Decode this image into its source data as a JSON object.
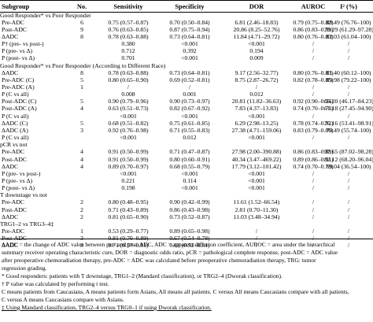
{
  "header": {
    "subgroup": "Subgroup",
    "no": "No.",
    "sensitivity": "Sensitivity",
    "specificity": "Specificity",
    "dor": "DOR",
    "auroc": "AUROC",
    "i2": "I² (%)"
  },
  "rows": [
    {
      "type": "section",
      "c0": "Good Responder* vs Poor Responder"
    },
    {
      "type": "data",
      "c0": "Pre-ADC",
      "c1": "6",
      "c2": "0.75 (0.57–0.87)",
      "c3": "0.70 (0.50–0.84)",
      "c4": "6.81 (2.46–18.83)",
      "c5": "0.79 (0.75–0.82)",
      "c6": "88.49 (76.76–100)"
    },
    {
      "type": "data",
      "c0": "Post-ADC",
      "c1": "9",
      "c2": "0.76 (0.63–0.85)",
      "c3": "0.87 (0.75–0.94)",
      "c4": "20.86 (8.25–52.76)",
      "c5": "0.86 (0.83–0.89)",
      "c6": "79.29 (61.29–97.28)"
    },
    {
      "type": "data",
      "c0": "ΔADC",
      "c1": "8",
      "c2": "0.78 (0.63–0.88)",
      "c3": "0.73 (0.64–0.81)",
      "c4": "11.84 (4.71–29.72)",
      "c5": "0.80 (0.76–0.83)",
      "c6": "82.03 (61.04–100)"
    },
    {
      "type": "data",
      "c0": "P† (pre- vs post-)",
      "c1": "",
      "c2": "0.380",
      "c3": "<0.001",
      "c4": "<0.001",
      "c5": "/",
      "c6": "/"
    },
    {
      "type": "data",
      "c0": "P (pre- vs Δ)",
      "c1": "",
      "c2": "0.712",
      "c3": "0.392",
      "c4": "0.194",
      "c5": "/",
      "c6": "/"
    },
    {
      "type": "data",
      "c0": "P (post- vs Δ)",
      "c1": "",
      "c2": "0.701",
      "c3": "<0.001",
      "c4": "0.009",
      "c5": "/",
      "c6": "/"
    },
    {
      "type": "section",
      "c0": "Good Responder* vs Poor Responder (According to Different Race)"
    },
    {
      "type": "data",
      "c0": "ΔADC",
      "c1": "8",
      "c2": "0.78 (0.63–0.88)",
      "c3": "0.73 (0.64–0.81)",
      "c4": "9.17 (2.56–32.77)",
      "c5": "0.80 (0.76–0.83)",
      "c6": "81.40 (60.12–100)"
    },
    {
      "type": "data",
      "c0": "Pre-ADC (C)",
      "c1": "5",
      "c2": "0.80 (0.65–0.90)",
      "c3": "0.69 (0.52–0.81)",
      "c4": "8.75 (2.87–26.72)",
      "c5": "0.82 (0.78–0.85)",
      "c6": "89.98 (79.22–100)"
    },
    {
      "type": "data",
      "c0": "Pre-ADC (A)",
      "c1": "1",
      "c2": "/",
      "c3": "/",
      "c4": "/",
      "c5": "/",
      "c6": "/"
    },
    {
      "type": "data",
      "c0": "P (C vs all)",
      "c1": "",
      "c2": "0.008",
      "c3": "0.001",
      "c4": "0.012",
      "c5": "/",
      "c6": "/"
    },
    {
      "type": "data",
      "c0": "Post-ADC (C)",
      "c1": "5",
      "c2": "0.90 (0.79–0.96)",
      "c3": "0.90 (0.73–0.97)",
      "c4": "20.81 (11.82–36.63)",
      "c5": "0.92 (0.90–0.94)",
      "c6": "65.20 (46.17–84.23)"
    },
    {
      "type": "data",
      "c0": "Post-ADC (A)",
      "c1": "4",
      "c2": "0.63 (0.51–0.73)",
      "c3": "0.82 (0.67–0.92)",
      "c4": "7.83 (4.37–13.83)",
      "c5": "0.74 (0.70–0.78)",
      "c6": "61.18 (27.45–94.90)"
    },
    {
      "type": "data",
      "c0": "P (C vs all)",
      "c1": "",
      "c2": "<0.001",
      "c3": "<0.001",
      "c4": "<0.001",
      "c5": "/",
      "c6": "/"
    },
    {
      "type": "data",
      "c0": "ΔADC (C)",
      "c1": "5",
      "c2": "0.68 (0.51–0.82)",
      "c3": "0.75 (0.61–0.85)",
      "c4": "6.29 (2.98–13.25)",
      "c5": "0.78 (0.74–0.82)",
      "c6": "76.16 (53.41–98.91)"
    },
    {
      "type": "data",
      "c0": "ΔADC (A)",
      "c1": "3",
      "c2": "0.92 (0.76–0.98)",
      "c3": "0.71 (0.55–0.83)",
      "c4": "27.38 (4.71–159.06)",
      "c5": "0.83 (0.79–0.86)",
      "c6": "79.49 (55.74–100)"
    },
    {
      "type": "data",
      "c0": "P (C vs all)",
      "c1": "",
      "c2": "<0.001",
      "c3": "0.012",
      "c4": "<0.001",
      "c5": "/",
      "c6": "/"
    },
    {
      "type": "section",
      "c0": "pCR vs not"
    },
    {
      "type": "data",
      "c0": "Pre-ADC",
      "c1": "4",
      "c2": "0.91 (0.50–0.99)",
      "c3": "0.71 (0.47–0.87)",
      "c4": "27.98 (2.00–390.88)",
      "c5": "0.86 (0.83–0.89)",
      "c6": "92.65 (87.02–98.28)"
    },
    {
      "type": "data",
      "c0": "Post-ADC",
      "c1": "4",
      "c2": "0.91 (0.50–0.99)",
      "c3": "0.80 (0.60–0.91)",
      "c4": "40.34 (3.47–469.22)",
      "c5": "0.89 (0.86–0.91)",
      "c6": "82.12 (68.20–96.04)"
    },
    {
      "type": "data",
      "c0": "ΔADC",
      "c1": "4",
      "c2": "0.89 (0.70–0.97)",
      "c3": "0.68 (0.55–0.79)",
      "c4": "17.79 (3.12–101.42)",
      "c5": "0.74 (0.70–0.78)",
      "c6": "69.04 (36.54–100)"
    },
    {
      "type": "data",
      "c0": "P (pre- vs post-)",
      "c1": "",
      "c2": "<0.001",
      "c3": "<0.001",
      "c4": "<0.001",
      "c5": "/",
      "c6": "/"
    },
    {
      "type": "data",
      "c0": "P (pre- vs Δ)",
      "c1": "",
      "c2": "0.221",
      "c3": "0.114",
      "c4": "<0.001",
      "c5": "/",
      "c6": "/"
    },
    {
      "type": "data",
      "c0": "P (post- vs Δ)",
      "c1": "",
      "c2": "0.198",
      "c3": "<0.001",
      "c4": "<0.001",
      "c5": "/",
      "c6": "/"
    },
    {
      "type": "section",
      "c0": "T downstage vs not"
    },
    {
      "type": "data",
      "c0": "Pre-ADC",
      "c1": "2",
      "c2": "0.80 (0.48–0.95)",
      "c3": "0.90 (0.42–0.99)",
      "c4": "11.61 (1.52–66.54)",
      "c5": "/",
      "c6": "/"
    },
    {
      "type": "data",
      "c0": "Post-ADC",
      "c1": "2",
      "c2": "0.71 (0.43–0.89)",
      "c3": "0.86 (0.43–0.98)",
      "c4": "2.81 (0.70–11.30)",
      "c5": "/",
      "c6": "/"
    },
    {
      "type": "data",
      "c0": "ΔADC",
      "c1": "2",
      "c2": "0.81 (0.65–0.90)",
      "c3": "0.73 (0.52–0.87)",
      "c4": "11.03 (3.48–34.94)",
      "c5": "/",
      "c6": "/"
    },
    {
      "type": "section",
      "c0": "TRG1–2 vs TRG3–4‡"
    },
    {
      "type": "data",
      "c0": "Pre-ADC",
      "c1": "1",
      "c2": "0.53 (0.29–0.77)",
      "c3": "0.89 (0.65–0.98)",
      "c4": "/",
      "c5": "/",
      "c6": "/"
    },
    {
      "type": "data",
      "c0": "Post-ADC",
      "c1": "3",
      "c2": "0.81 (0.70–0.89)",
      "c3": "0.67 (0.54–0.78)",
      "c4": "/",
      "c5": "/",
      "c6": "/"
    },
    {
      "type": "data",
      "c0": "ΔADC",
      "c1": "3",
      "c2": "0.71 (0.57–0.81)",
      "c3": "0.68 (0.52–0.81)",
      "c4": "/",
      "c5": "/",
      "c6": "/"
    }
  ],
  "notes": [
    "ΔADC = the change of ADC value between pre- and post-ADC, ADC = apparent diffusion coefficient, AUROC = area under the hierarchical",
    "summary receiver operating characteristic cure, DOR = diagnostic odds ratio, pCR = pathological complete response, post-ADC = ADC value",
    "after preoperative chemoradiation therapy, pre-ADC = ADC was calculated before preoperative chemoradiation therapy, TRG: tumor",
    "regression grading.",
    "* Good responders: patients with T downstage, TRG1–2 (Mandard classification), or TRG2–4 (Dworak classification).",
    "† P value was calculated by performing t test.",
    "C means patients from Caucasians, A means patients form Asians, All means all patients. C versus All means Caucasians compare with all patients,",
    "C versus A means Caucasians compare with Asians.",
    "‡ Using Mandard classification, TRG2–4 versus TRG0–1 if using Dworak classification."
  ]
}
